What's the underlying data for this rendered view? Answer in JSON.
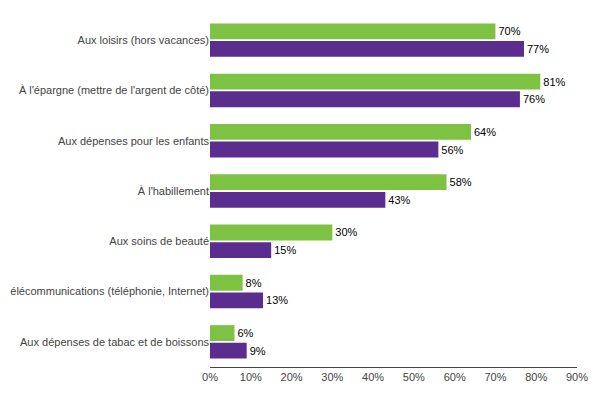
{
  "chart_data": {
    "type": "bar",
    "orientation": "horizontal",
    "categories": [
      "Aux loisirs (hors vacances)",
      "À l'épargne (mettre de l'argent de côté)",
      "Aux dépenses pour les enfants",
      "À l'habillement",
      "Aux soins de beauté",
      "élécommunications (téléphonie, Internet)",
      "Aux dépenses de tabac et de boissons"
    ],
    "series": [
      {
        "color": "#7DC242",
        "values": [
          70,
          81,
          64,
          58,
          30,
          8,
          6
        ],
        "value_labels": [
          "70%",
          "81%",
          "64%",
          "58%",
          "30%",
          "8%",
          "6%"
        ]
      },
      {
        "color": "#5B2D8E",
        "values": [
          77,
          76,
          56,
          43,
          15,
          13,
          9
        ],
        "value_labels": [
          "77%",
          "76%",
          "56%",
          "43%",
          "15%",
          "13%",
          "9%"
        ]
      }
    ],
    "xlim": [
      0,
      90
    ],
    "xticks": [
      {
        "value": 0,
        "label": "0%"
      },
      {
        "value": 10,
        "label": "10%"
      },
      {
        "value": 20,
        "label": "20%"
      },
      {
        "value": 30,
        "label": "30%"
      },
      {
        "value": 40,
        "label": "40%"
      },
      {
        "value": 50,
        "label": "50%"
      },
      {
        "value": 60,
        "label": "60%"
      },
      {
        "value": 70,
        "label": "70%"
      },
      {
        "value": 80,
        "label": "80%"
      },
      {
        "value": 90,
        "label": "90%"
      }
    ],
    "grid": false,
    "data_labels": true
  }
}
